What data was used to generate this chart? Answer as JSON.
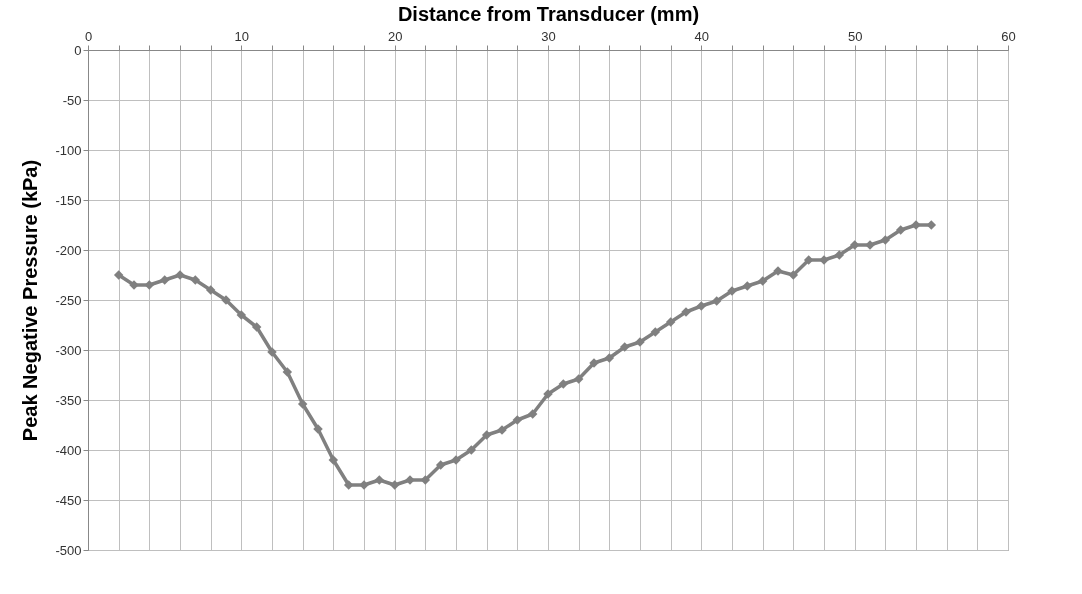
{
  "chart_data": {
    "type": "line",
    "xlabel": "Distance from Transducer (mm)",
    "ylabel": "Peak Negative Pressure (kPa)",
    "x": [
      2,
      3,
      4,
      5,
      6,
      7,
      8,
      9,
      10,
      11,
      12,
      13,
      14,
      15,
      16,
      17,
      18,
      19,
      20,
      21,
      22,
      23,
      24,
      25,
      26,
      27,
      28,
      29,
      30,
      31,
      32,
      33,
      34,
      35,
      36,
      37,
      38,
      39,
      40,
      41,
      42,
      43,
      44,
      45,
      46,
      47,
      48,
      49,
      50,
      51,
      52,
      53,
      54,
      55
    ],
    "series": [
      {
        "color": "#808080",
        "values": [
          -225,
          -235,
          -235,
          -230,
          -225,
          -230,
          -240,
          -250,
          -265,
          -277,
          -302,
          -322,
          -354,
          -379,
          -410,
          -435,
          -435,
          -430,
          -435,
          -430,
          -430,
          -415,
          -410,
          -400,
          -385,
          -380,
          -370,
          -364,
          -344,
          -334,
          -329,
          -313,
          -308,
          -297,
          -292,
          -282,
          -272,
          -262,
          -256,
          -251,
          -241,
          -236,
          -231,
          -221,
          -225,
          -210,
          -210,
          -205,
          -195,
          -195,
          -190,
          -180,
          -175,
          -175
        ]
      }
    ],
    "xlim": [
      0,
      60
    ],
    "ylim": [
      -500,
      0
    ],
    "xticks": [
      0,
      {
        "value": 2,
        "label": null
      },
      {
        "value": 4,
        "label": null
      },
      {
        "value": 6,
        "label": null
      },
      {
        "value": 8,
        "label": null
      },
      10,
      {
        "value": 12,
        "label": null
      },
      {
        "value": 14,
        "label": null
      },
      {
        "value": 16,
        "label": null
      },
      {
        "value": 18,
        "label": null
      },
      20,
      {
        "value": 22,
        "label": null
      },
      {
        "value": 24,
        "label": null
      },
      {
        "value": 26,
        "label": null
      },
      {
        "value": 28,
        "label": null
      },
      30,
      {
        "value": 32,
        "label": null
      },
      {
        "value": 34,
        "label": null
      },
      {
        "value": 36,
        "label": null
      },
      {
        "value": 38,
        "label": null
      },
      40,
      {
        "value": 42,
        "label": null
      },
      {
        "value": 44,
        "label": null
      },
      {
        "value": 46,
        "label": null
      },
      {
        "value": 48,
        "label": null
      },
      50,
      {
        "value": 52,
        "label": null
      },
      {
        "value": 54,
        "label": null
      },
      {
        "value": 56,
        "label": null
      },
      {
        "value": 58,
        "label": null
      },
      60
    ],
    "yticks": [
      -500,
      -450,
      -400,
      -350,
      -300,
      -250,
      -200,
      -150,
      -100,
      -50,
      0
    ],
    "grid": true,
    "marker": "diamond",
    "line_style": "solid"
  }
}
